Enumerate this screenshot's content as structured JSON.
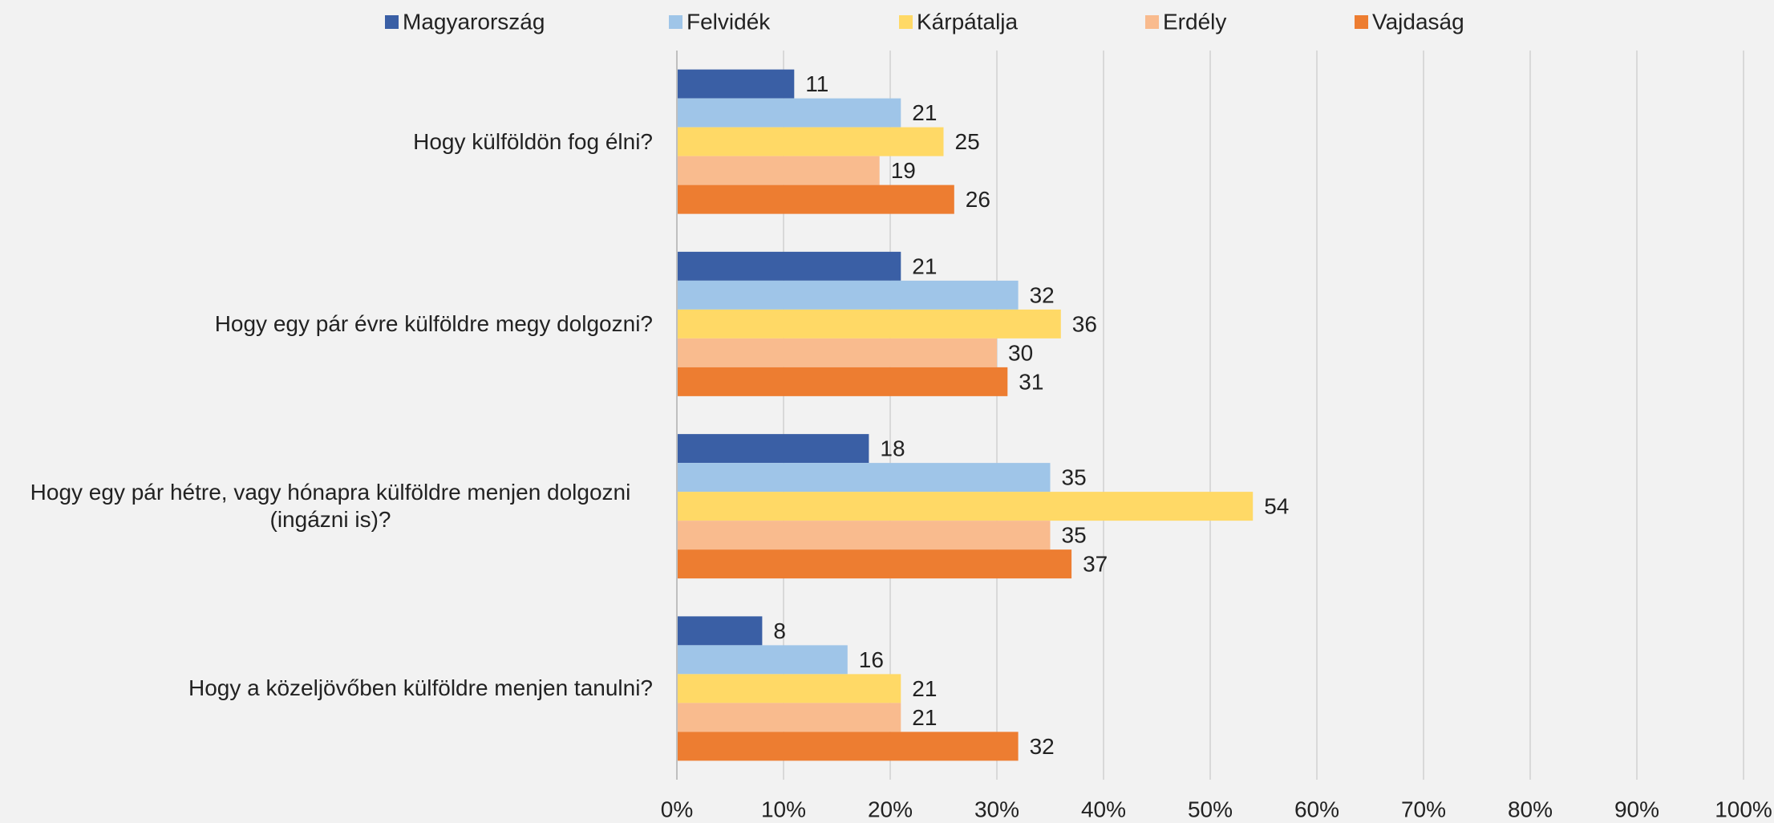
{
  "chart_data": {
    "type": "bar",
    "orientation": "horizontal",
    "categories": [
      "Hogy külföldön fog élni?",
      "Hogy egy pár évre külföldre megy dolgozni?",
      "Hogy egy pár hétre, vagy hónapra külföldre menjen dolgozni (ingázni is)?",
      "Hogy a közeljövőben külföldre menjen tanulni?"
    ],
    "series": [
      {
        "name": "Magyarország",
        "color": "#3a5fa5",
        "values": [
          11,
          21,
          18,
          8
        ]
      },
      {
        "name": "Felvidék",
        "color": "#9fc5e8",
        "values": [
          21,
          32,
          35,
          16
        ]
      },
      {
        "name": "Kárpátalja",
        "color": "#ffd966",
        "values": [
          25,
          36,
          54,
          21
        ]
      },
      {
        "name": "Erdély",
        "color": "#f9bb8e",
        "values": [
          19,
          30,
          35,
          21
        ]
      },
      {
        "name": "Vajdaság",
        "color": "#ed7d31",
        "values": [
          26,
          31,
          37,
          32
        ]
      }
    ],
    "xlim": [
      0,
      100
    ],
    "xticks": [
      {
        "value": 0,
        "label": "0%"
      },
      {
        "value": 10,
        "label": "10%"
      },
      {
        "value": 20,
        "label": "20%"
      },
      {
        "value": 30,
        "label": "30%"
      },
      {
        "value": 40,
        "label": "40%"
      },
      {
        "value": 50,
        "label": "50%"
      },
      {
        "value": 60,
        "label": "60%"
      },
      {
        "value": 70,
        "label": "70%"
      },
      {
        "value": 80,
        "label": "80%"
      },
      {
        "value": 90,
        "label": "90%"
      },
      {
        "value": 100,
        "label": "100%"
      }
    ],
    "grid": true,
    "legend": "top"
  }
}
